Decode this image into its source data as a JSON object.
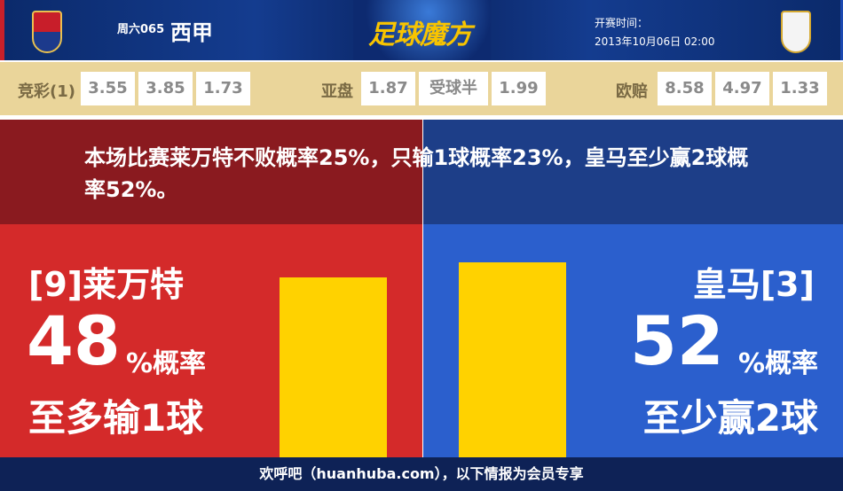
{
  "header": {
    "match_no": "周六065",
    "league": "西甲",
    "brand": "足球魔方",
    "kickoff_label": "开赛时间：",
    "kickoff_time": "2013年10月06日 02:00",
    "home_crest": "levante-crest-icon",
    "away_crest": "real-madrid-crest-icon"
  },
  "odds": {
    "jingcai_label": "竞彩(1)",
    "jingcai": [
      "3.55",
      "3.85",
      "1.73"
    ],
    "asian_label": "亚盘",
    "asian": [
      "1.87",
      "受球半",
      "1.99"
    ],
    "euro_label": "欧赔",
    "euro": [
      "8.58",
      "4.97",
      "1.33"
    ]
  },
  "banner": {
    "text": "本场比赛莱万特不败概率25%，只输1球概率23%，皇马至少赢2球概率52%。"
  },
  "home": {
    "team": "[9]莱万特",
    "pct": "48",
    "pct_suffix": "%概率",
    "outcome": "至多输1球",
    "bar_value": 48
  },
  "away": {
    "team": "皇马[3]",
    "pct": "52",
    "pct_suffix": "%概率",
    "outcome": "至少赢2球",
    "bar_value": 52
  },
  "footer": {
    "text": "欢呼吧（huanhuba.com），以下情报为会员专享"
  },
  "colors": {
    "home": "#d42a2a",
    "away": "#2b5fcd",
    "bar": "#ffd200"
  }
}
